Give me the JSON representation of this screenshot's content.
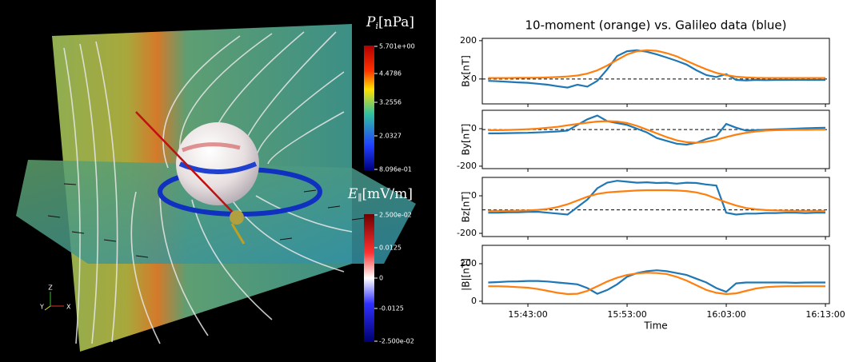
{
  "render": {
    "pressure_label": {
      "symbol": "P",
      "sub": "i",
      "unit": "[nPa]"
    },
    "pressure_ticks": [
      "5.701e+00",
      "4.4786",
      "3.2556",
      "2.0327",
      "8.096e-01"
    ],
    "efield_label": {
      "symbol": "E",
      "sub": "∥",
      "unit": "[mV/m]"
    },
    "efield_ticks": [
      "2.500e-02",
      "0.0125",
      "0",
      "-0.0125",
      "-2.500e-02"
    ],
    "axes": [
      "Z",
      "Y",
      "X"
    ]
  },
  "chart_data": {
    "type": "line",
    "title": "10-moment (orange) vs. Galileo data (blue)",
    "xlabel": "Time",
    "x": [
      "15:39:00",
      "15:40:00",
      "15:41:00",
      "15:42:00",
      "15:43:00",
      "15:44:00",
      "15:45:00",
      "15:46:00",
      "15:47:00",
      "15:48:00",
      "15:49:00",
      "15:50:00",
      "15:51:00",
      "15:52:00",
      "15:53:00",
      "15:54:00",
      "15:55:00",
      "15:56:00",
      "15:57:00",
      "15:58:00",
      "15:59:00",
      "16:00:00",
      "16:01:00",
      "16:02:00",
      "16:03:00",
      "16:04:00",
      "16:05:00",
      "16:06:00",
      "16:07:00",
      "16:08:00",
      "16:09:00",
      "16:10:00",
      "16:11:00",
      "16:12:00",
      "16:13:00"
    ],
    "xlim": [
      "15:38:24",
      "16:13:24"
    ],
    "xticks": [
      "15:43:00",
      "15:53:00",
      "16:03:00",
      "16:13:00"
    ],
    "panels": [
      {
        "ylabel": "Bx[nT]",
        "ylim": [
          -130,
          212
        ],
        "yticks": [
          0,
          200
        ],
        "reference_line": 0,
        "series": [
          {
            "color": "#1f77b4",
            "values": [
              -10,
              -12,
              -15,
              -18,
              -20,
              -25,
              -30,
              -38,
              -45,
              -30,
              -40,
              -10,
              50,
              120,
              145,
              150,
              142,
              128,
              112,
              95,
              75,
              45,
              20,
              10,
              25,
              -5,
              -8,
              -5,
              -6,
              -5,
              -5,
              -4,
              -5,
              -5,
              -5
            ]
          },
          {
            "color": "#ff7f0e",
            "values": [
              5,
              5,
              5,
              6,
              6,
              7,
              8,
              10,
              13,
              18,
              28,
              45,
              70,
              100,
              128,
              145,
              150,
              147,
              135,
              118,
              95,
              72,
              50,
              32,
              20,
              12,
              8,
              6,
              5,
              5,
              5,
              5,
              5,
              5,
              5
            ]
          }
        ]
      },
      {
        "ylabel": "By[nT]",
        "ylim": [
          -213,
          98
        ],
        "yticks": [
          -200,
          0
        ],
        "reference_line": -5,
        "series": [
          {
            "color": "#1f77b4",
            "values": [
              -25,
              -25,
              -24,
              -23,
              -22,
              -20,
              -18,
              -15,
              -10,
              20,
              50,
              70,
              40,
              30,
              20,
              0,
              -20,
              -50,
              -65,
              -80,
              -85,
              -75,
              -55,
              -40,
              25,
              5,
              -10,
              -8,
              -6,
              -4,
              -2,
              0,
              2,
              4,
              5
            ]
          },
          {
            "color": "#ff7f0e",
            "values": [
              -8,
              -8,
              -7,
              -5,
              -3,
              0,
              5,
              10,
              18,
              25,
              32,
              38,
              40,
              38,
              30,
              15,
              -5,
              -25,
              -45,
              -62,
              -72,
              -75,
              -70,
              -60,
              -45,
              -32,
              -22,
              -15,
              -10,
              -8,
              -7,
              -6,
              -6,
              -5,
              -5
            ]
          }
        ]
      },
      {
        "ylabel": "Bz[nT]",
        "ylim": [
          -217,
          98
        ],
        "yticks": [
          -200,
          0
        ],
        "reference_line": -75,
        "series": [
          {
            "color": "#1f77b4",
            "values": [
              -90,
              -90,
              -88,
              -88,
              -86,
              -85,
              -90,
              -95,
              -100,
              -60,
              -20,
              40,
              70,
              80,
              75,
              70,
              72,
              68,
              70,
              65,
              70,
              68,
              60,
              55,
              -90,
              -100,
              -95,
              -95,
              -92,
              -92,
              -90,
              -90,
              -92,
              -90,
              -90
            ]
          },
          {
            "color": "#ff7f0e",
            "values": [
              -80,
              -80,
              -80,
              -79,
              -78,
              -75,
              -70,
              -60,
              -45,
              -25,
              -5,
              10,
              18,
              22,
              25,
              28,
              30,
              30,
              30,
              28,
              25,
              18,
              5,
              -15,
              -35,
              -52,
              -65,
              -72,
              -76,
              -78,
              -79,
              -80,
              -80,
              -80,
              -80
            ]
          }
        ]
      },
      {
        "ylabel": "|B|[nT]",
        "ylim": [
          -13,
          298
        ],
        "yticks": [
          0,
          200
        ],
        "series": [
          {
            "color": "#1f77b4",
            "values": [
              100,
              102,
              105,
              106,
              108,
              108,
              105,
              100,
              95,
              90,
              70,
              40,
              60,
              90,
              130,
              150,
              160,
              165,
              160,
              150,
              140,
              120,
              100,
              70,
              50,
              95,
              100,
              100,
              100,
              100,
              100,
              98,
              100,
              100,
              100
            ]
          },
          {
            "color": "#ff7f0e",
            "values": [
              80,
              80,
              78,
              75,
              72,
              65,
              55,
              45,
              38,
              40,
              55,
              80,
              105,
              125,
              140,
              148,
              152,
              150,
              145,
              130,
              110,
              85,
              60,
              45,
              38,
              42,
              55,
              68,
              75,
              78,
              80,
              80,
              80,
              80,
              80
            ]
          }
        ]
      }
    ]
  }
}
